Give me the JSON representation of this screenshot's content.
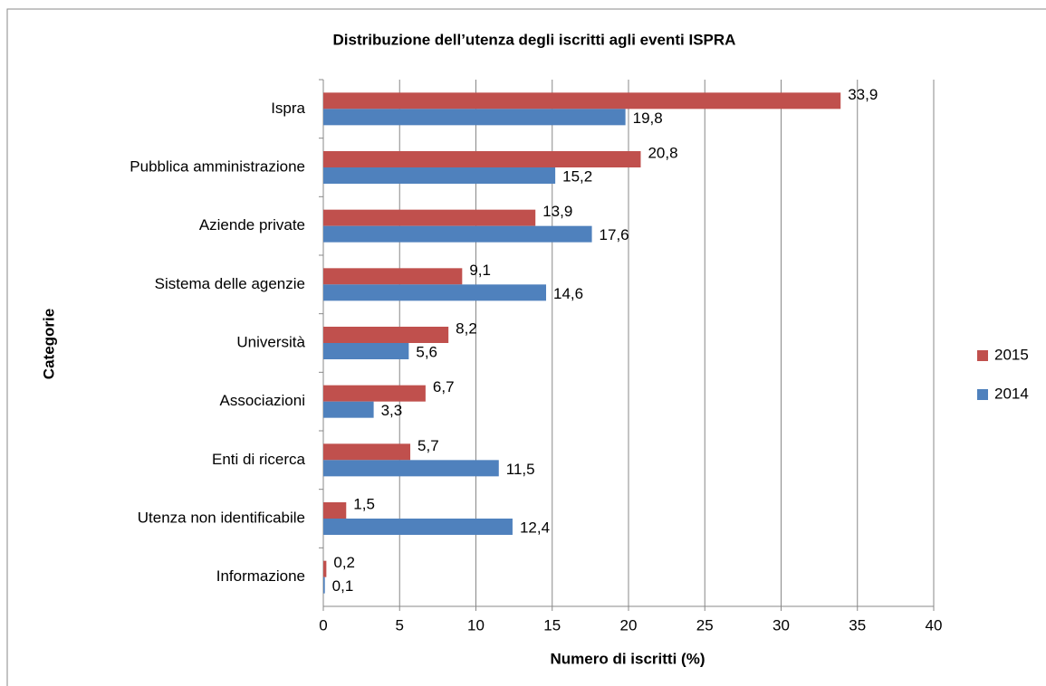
{
  "chart_data": {
    "type": "bar",
    "orientation": "horizontal",
    "title": "Distribuzione dell’utenza degli iscritti agli eventi ISPRA",
    "xlabel": "Numero di iscritti (%)",
    "ylabel": "Categorie",
    "categories": [
      "Ispra",
      "Pubblica amministrazione",
      "Aziende private",
      "Sistema delle agenzie",
      "Università",
      "Associazioni",
      "Enti di ricerca",
      "Utenza non identificabile",
      "Informazione"
    ],
    "series": [
      {
        "name": "2015",
        "color": "#c0504d",
        "values": [
          33.9,
          20.8,
          13.9,
          9.1,
          8.2,
          6.7,
          5.7,
          1.5,
          0.2
        ],
        "value_labels": [
          "33,9",
          "20,8",
          "13,9",
          "9,1",
          "8,2",
          "6,7",
          "5,7",
          "1,5",
          "0,2"
        ]
      },
      {
        "name": "2014",
        "color": "#4f81bd",
        "values": [
          19.8,
          15.2,
          17.6,
          14.6,
          5.6,
          3.3,
          11.5,
          12.4,
          0.1
        ],
        "value_labels": [
          "19,8",
          "15,2",
          "17,6",
          "14,6",
          "5,6",
          "3,3",
          "11,5",
          "12,4",
          "0,1"
        ]
      }
    ],
    "xlim": [
      0,
      40
    ],
    "xticks": [
      0,
      5,
      10,
      15,
      20,
      25,
      30,
      35,
      40
    ],
    "grid": true,
    "legend": "right"
  }
}
